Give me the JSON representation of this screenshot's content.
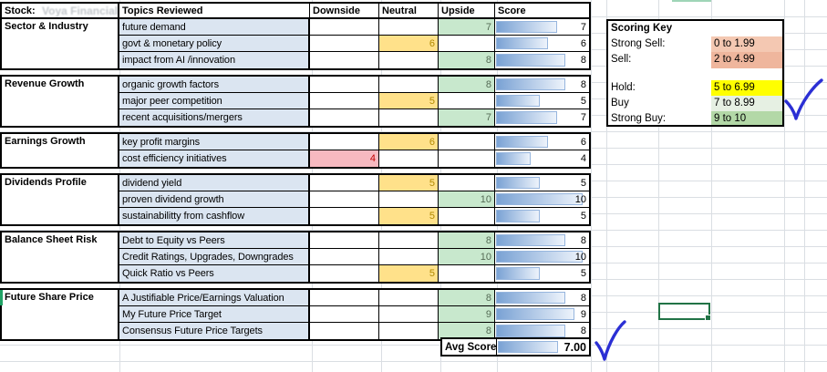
{
  "header": {
    "stock_label": "Stock:",
    "stock_name": "Voya Financial",
    "columns": [
      "Topics Reviewed",
      "Downside",
      "Neutral",
      "Upside",
      "Score"
    ]
  },
  "groups": [
    {
      "name": "Sector & Industry",
      "rows": [
        {
          "topic": "future demand",
          "column": "upside",
          "value": 7,
          "score": 7
        },
        {
          "topic": "govt & monetary policy",
          "column": "neutral",
          "value": 6,
          "score": 6
        },
        {
          "topic": "impact from AI /innovation",
          "column": "upside",
          "value": 8,
          "score": 8
        }
      ]
    },
    {
      "name": "Revenue Growth",
      "rows": [
        {
          "topic": "organic growth factors",
          "column": "upside",
          "value": 8,
          "score": 8
        },
        {
          "topic": "major peer competition",
          "column": "neutral",
          "value": 5,
          "score": 5
        },
        {
          "topic": "recent acquisitions/mergers",
          "column": "upside",
          "value": 7,
          "score": 7
        }
      ]
    },
    {
      "name": "Earnings Growth",
      "rows": [
        {
          "topic": "key profit margins",
          "column": "neutral",
          "value": 6,
          "score": 6
        },
        {
          "topic": "cost efficiency initiatives",
          "column": "downside",
          "value": 4,
          "score": 4
        }
      ]
    },
    {
      "name": "Dividends Profile",
      "rows": [
        {
          "topic": "dividend yield",
          "column": "neutral",
          "value": 5,
          "score": 5
        },
        {
          "topic": "proven dividend growth",
          "column": "upside",
          "value": 10,
          "score": 10
        },
        {
          "topic": "sustainabilitty from cashflow",
          "column": "neutral",
          "value": 5,
          "score": 5
        }
      ]
    },
    {
      "name": "Balance Sheet Risk",
      "rows": [
        {
          "topic": "Debt to Equity vs Peers",
          "column": "upside",
          "value": 8,
          "score": 8
        },
        {
          "topic": "Credit Ratings, Upgrades, Downgrades",
          "column": "upside",
          "value": 10,
          "score": 10
        },
        {
          "topic": "Quick Ratio vs Peers",
          "column": "neutral",
          "value": 5,
          "score": 5
        }
      ]
    },
    {
      "name": "Future Share Price",
      "rows": [
        {
          "topic": "A Justifiable Price/Earnings Valuation",
          "column": "upside",
          "value": 8,
          "score": 8
        },
        {
          "topic": "My Future Price Target",
          "column": "upside",
          "value": 9,
          "score": 9
        },
        {
          "topic": "Consensus Future Price Targets",
          "column": "upside",
          "value": 8,
          "score": 8
        }
      ]
    }
  ],
  "summary": {
    "label": "Avg Score",
    "value": "7.00",
    "score": 7
  },
  "scoring_key": {
    "title": "Scoring Key",
    "entries": [
      {
        "label": "Strong Sell:",
        "range": "0 to 1.99",
        "color": "#f4c8b2"
      },
      {
        "label": "Sell:",
        "range": "2 to 4.99",
        "color": "#efb69d"
      },
      {
        "label": "Hold:",
        "range": "5 to 6.99",
        "color": "#ffff00"
      },
      {
        "label": "Buy",
        "range": "7 to 8.99",
        "color": "#e6f0e3"
      },
      {
        "label": "Strong Buy:",
        "range": "9 to 10",
        "color": "#b3d8a7"
      }
    ]
  },
  "colors": {
    "topic_bg": "#dbe5f1",
    "downside_bg": "#f7b9c0",
    "downside_text": "#c00000",
    "neutral_bg": "#ffe18a",
    "neutral_text": "#b18a00",
    "upside_bg": "#c8e8cd",
    "upside_text": "#546b55",
    "bar_start": "#7aa2d4",
    "bar_end": "#edf3fb",
    "bar_border": "#97b6de",
    "gridline": "#dadee3",
    "selection_green": "#217346",
    "checkmark_blue": "#2b2fd4"
  }
}
